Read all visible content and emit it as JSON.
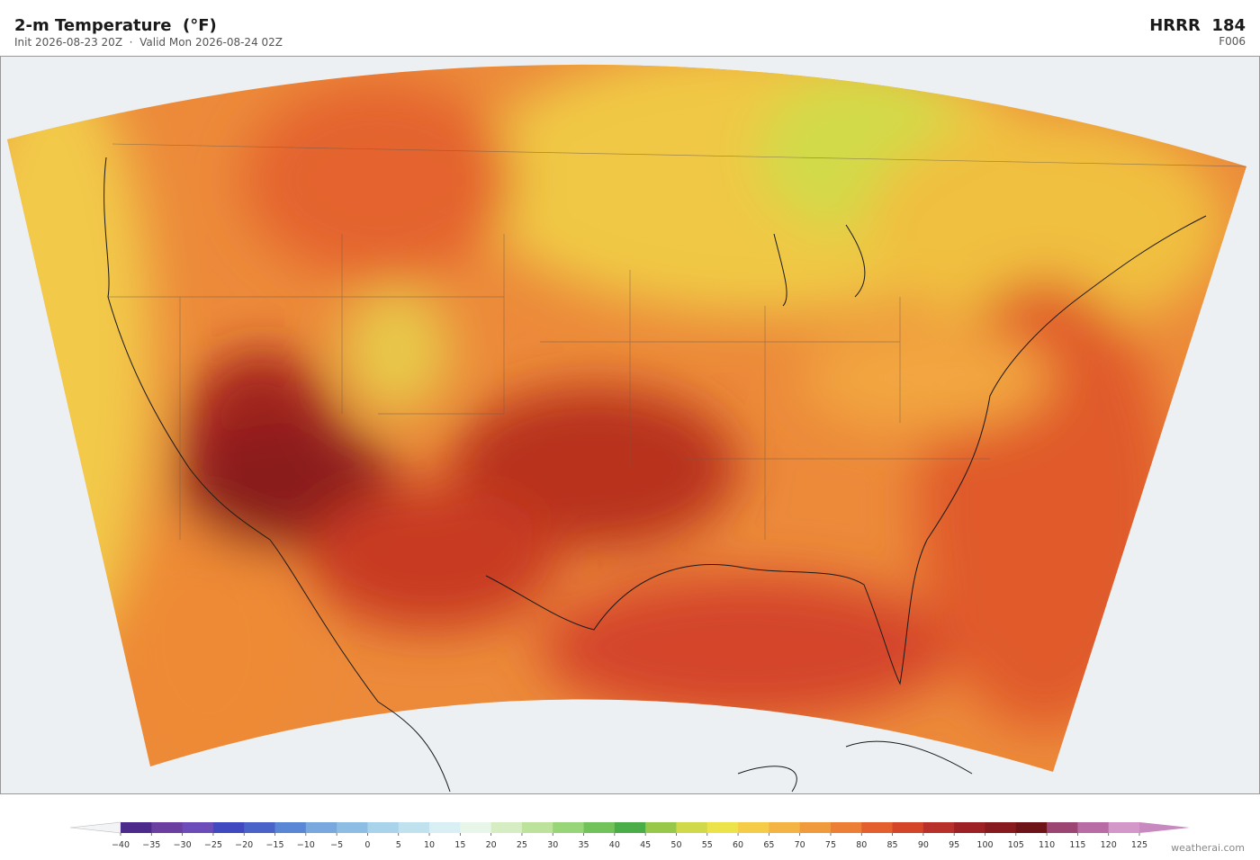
{
  "header": {
    "title": "2-m Temperature  (°F)",
    "subtitle": "Init 2026-08-23 20Z  ·  Valid Mon 2026-08-24 02Z",
    "model": "HRRR  184",
    "forecast_hour": "F006"
  },
  "colorbar": {
    "range": [
      -40,
      125
    ],
    "ticks": [
      {
        "value": -40,
        "label": "−40"
      },
      {
        "value": -35,
        "label": "−35"
      },
      {
        "value": -30,
        "label": "−30"
      },
      {
        "value": -25,
        "label": "−25"
      },
      {
        "value": -20,
        "label": "−20"
      },
      {
        "value": -15,
        "label": "−15"
      },
      {
        "value": -10,
        "label": "−10"
      },
      {
        "value": -5,
        "label": "−5"
      },
      0,
      5,
      10,
      15,
      20,
      25,
      30,
      35,
      40,
      45,
      50,
      55,
      60,
      65,
      70,
      75,
      80,
      85,
      90,
      95,
      100,
      105,
      110,
      115,
      120,
      125
    ],
    "colors": [
      "#4b2a8c",
      "#6a3fa0",
      "#6b4cb8",
      "#4149c0",
      "#4a63c8",
      "#5a86d6",
      "#78a8de",
      "#8dbde3",
      "#a8d3ea",
      "#c0e2ef",
      "#d8eff3",
      "#e8f6ea",
      "#d6ecc2",
      "#bde29c",
      "#98d478",
      "#72c25a",
      "#4aad48",
      "#98c84a",
      "#cfd94a",
      "#ece24a",
      "#f4cc48",
      "#f4b443",
      "#f09a3e",
      "#ec7f36",
      "#e45f2e",
      "#d44426",
      "#b8302a",
      "#9c2024",
      "#861a1e",
      "#6e1418",
      "#9c4472",
      "#b86ca4",
      "#d498c8"
    ],
    "under_color": "#f2f4f6",
    "over_color": "#c888c0"
  },
  "footer": {
    "credit": "weatherai.com"
  }
}
